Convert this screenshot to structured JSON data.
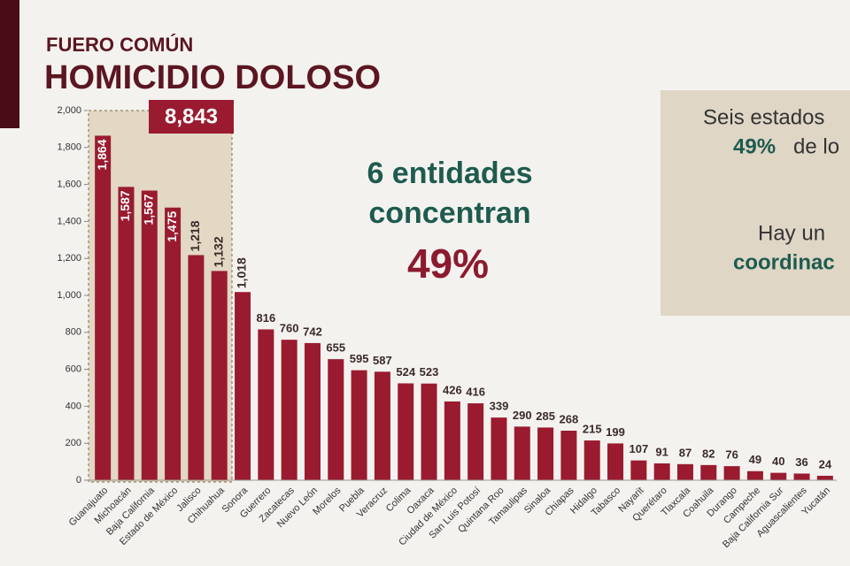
{
  "chart_data": {
    "type": "bar",
    "subtitle": "FUERO COMÚN",
    "title": "HOMICIDIO DOLOSO",
    "categories": [
      "Guanajuato",
      "Michoacán",
      "Baja California",
      "Estado de México",
      "Jalisco",
      "Chihuahua",
      "Sonora",
      "Guerrero",
      "Zacatecas",
      "Nuevo León",
      "Morelos",
      "Puebla",
      "Veracruz",
      "Colima",
      "Oaxaca",
      "Ciudad de México",
      "San Luis Potosí",
      "Quintana Roo",
      "Tamaulipas",
      "Sinaloa",
      "Chiapas",
      "Hidalgo",
      "Tabasco",
      "Nayarit",
      "Querétaro",
      "Tlaxcala",
      "Coahuila",
      "Durango",
      "Campeche",
      "Baja California Sur",
      "Aguascalientes",
      "Yucatán"
    ],
    "values": [
      1864,
      1587,
      1567,
      1475,
      1218,
      1132,
      1018,
      816,
      760,
      742,
      655,
      595,
      587,
      524,
      523,
      426,
      416,
      339,
      290,
      285,
      268,
      215,
      199,
      107,
      91,
      87,
      82,
      76,
      49,
      40,
      36,
      24
    ],
    "value_labels": [
      "1,864",
      "1,587",
      "1,567",
      "1,475",
      "1,218",
      "1,132",
      "1,018",
      "816",
      "760",
      "742",
      "655",
      "595",
      "587",
      "524",
      "523",
      "426",
      "416",
      "339",
      "290",
      "285",
      "268",
      "215",
      "199",
      "107",
      "91",
      "87",
      "82",
      "76",
      "49",
      "40",
      "36",
      "24"
    ],
    "color": "#9a1b2f",
    "ylim": [
      0,
      2000
    ],
    "yticks": [
      0,
      200,
      400,
      600,
      800,
      {
        "value": 1000,
        "label": "1,000"
      },
      {
        "value": 1200,
        "label": "1,200"
      },
      {
        "value": 1400,
        "label": "1,400"
      },
      {
        "value": 1600,
        "label": "1,600"
      },
      {
        "value": 1800,
        "label": "1,800"
      },
      {
        "value": 2000,
        "label": "2,000"
      }
    ],
    "highlight_total": "8,843",
    "annotation": [
      "6 entidades",
      "concentran",
      "49%"
    ],
    "side_panel": [
      "Seis estados",
      "49%",
      "de lo",
      "Hay un",
      "coordinac"
    ]
  }
}
